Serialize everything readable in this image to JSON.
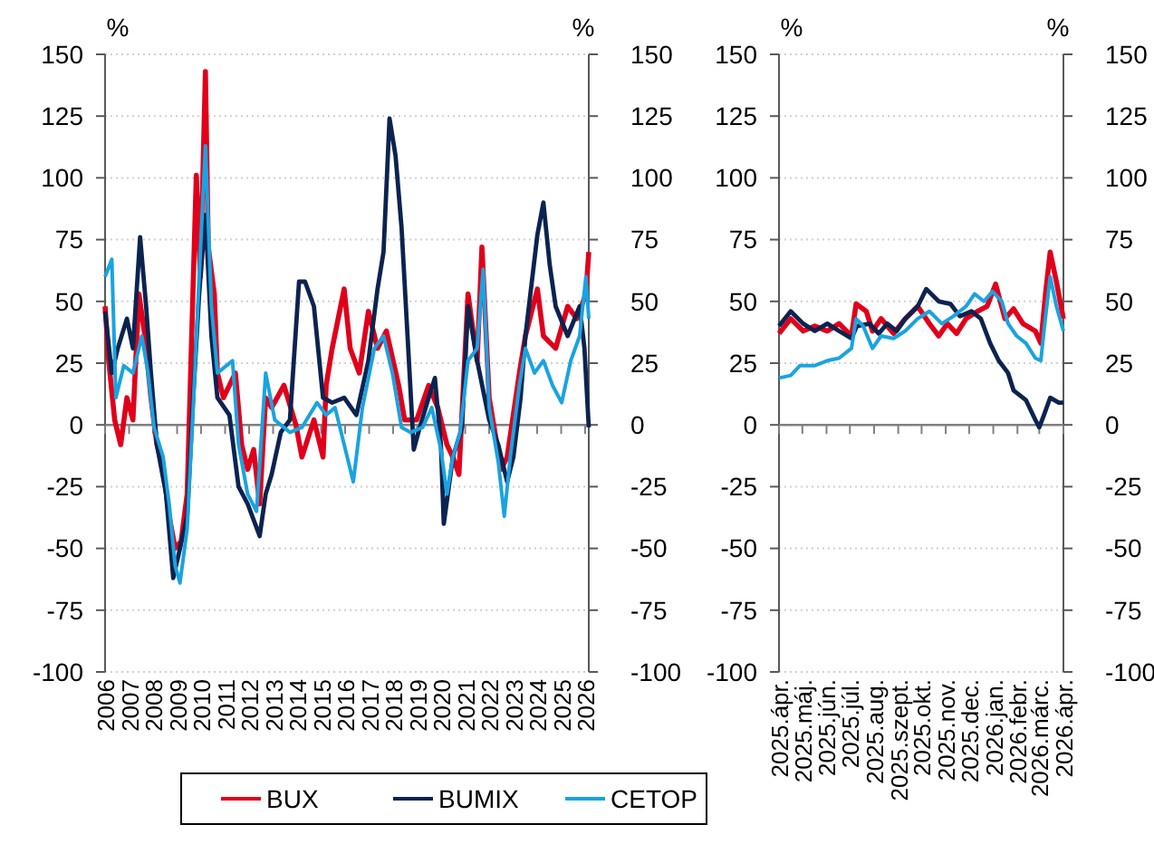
{
  "chart_data": [
    {
      "type": "line",
      "ylabel": "%",
      "y2label": "%",
      "xlim": [
        2006,
        2026.15
      ],
      "xticks": [
        2006,
        2007,
        2008,
        2009,
        2010,
        2011,
        2012,
        2013,
        2014,
        2015,
        2016,
        2017,
        2018,
        2019,
        2020,
        2021,
        2022,
        2023,
        2024,
        2025,
        2026
      ],
      "ylim": [
        -100,
        150
      ],
      "yticks": [
        -100,
        -75,
        -50,
        -25,
        0,
        25,
        50,
        75,
        100,
        125,
        150
      ],
      "y2lim": [
        -100,
        150
      ],
      "y2ticks": [
        -100,
        -75,
        -50,
        -25,
        0,
        25,
        50,
        75,
        100,
        125,
        150
      ],
      "grid": "y",
      "legend": "bottom",
      "series": [
        {
          "name": "BUX",
          "color": "#e0001b",
          "x": [
            2006.0,
            2006.15,
            2006.4,
            2006.65,
            2006.91,
            2007.16,
            2007.41,
            2007.66,
            2007.91,
            2008.16,
            2008.42,
            2008.67,
            2008.92,
            2009.17,
            2009.42,
            2009.55,
            2009.8,
            2009.97,
            2010.18,
            2010.3,
            2010.55,
            2010.68,
            2010.93,
            2011.43,
            2011.69,
            2011.94,
            2012.19,
            2012.44,
            2012.69,
            2012.94,
            2013.45,
            2013.95,
            2014.2,
            2014.7,
            2015.08,
            2015.21,
            2015.46,
            2015.96,
            2016.21,
            2016.59,
            2016.97,
            2017.35,
            2017.72,
            2018.23,
            2018.48,
            2018.98,
            2019.48,
            2019.86,
            2020.24,
            2020.49,
            2020.74,
            2021.12,
            2021.5,
            2021.7,
            2022.0,
            2022.5,
            2022.75,
            2023.26,
            2023.51,
            2024.01,
            2024.26,
            2024.77,
            2025.27,
            2025.65,
            2026.03,
            2026.15
          ],
          "values": [
            48,
            26,
            2,
            -8,
            11,
            2,
            53,
            36,
            11,
            -8,
            -18,
            -37,
            -50,
            -47,
            -28,
            16,
            101,
            60,
            143,
            72,
            53,
            21,
            11,
            21,
            -8,
            -18,
            -10,
            -32,
            11,
            7,
            16,
            0,
            -13,
            2,
            -13,
            16,
            31,
            55,
            31,
            21,
            46,
            31,
            38,
            16,
            2,
            2,
            16,
            7,
            -8,
            -13,
            -20,
            53,
            26,
            72,
            11,
            -18,
            -13,
            21,
            36,
            55,
            36,
            31,
            48,
            43,
            53,
            70
          ]
        },
        {
          "name": "BUMIX",
          "color": "#0c2350",
          "x": [
            2006.0,
            2006.28,
            2006.53,
            2006.91,
            2007.16,
            2007.46,
            2007.71,
            2007.91,
            2008.16,
            2008.54,
            2008.84,
            2009.12,
            2009.42,
            2009.67,
            2009.92,
            2010.18,
            2010.43,
            2010.68,
            2011.18,
            2011.56,
            2011.94,
            2012.44,
            2012.69,
            2012.94,
            2013.32,
            2013.7,
            2014.08,
            2014.33,
            2014.7,
            2015.08,
            2015.46,
            2015.96,
            2016.47,
            2016.97,
            2017.35,
            2017.6,
            2017.85,
            2018.1,
            2018.35,
            2018.6,
            2018.86,
            2019.11,
            2019.48,
            2019.74,
            2019.99,
            2020.11,
            2020.49,
            2020.87,
            2021.12,
            2021.5,
            2022.0,
            2022.38,
            2022.75,
            2023.01,
            2023.31,
            2023.51,
            2024.01,
            2024.26,
            2024.52,
            2024.77,
            2025.27,
            2025.77,
            2025.97,
            2026.15
          ],
          "values": [
            46,
            21,
            31,
            43,
            31,
            76,
            48,
            21,
            -8,
            -28,
            -62,
            -50,
            -37,
            11,
            53,
            85,
            36,
            11,
            4,
            -25,
            -32,
            -45,
            -28,
            -20,
            -3,
            2,
            58,
            58,
            48,
            11,
            9,
            11,
            4,
            26,
            55,
            70,
            124,
            109,
            80,
            36,
            -10,
            -1,
            11,
            19,
            -8,
            -40,
            -13,
            -1,
            48,
            26,
            2,
            -8,
            -23,
            -13,
            11,
            36,
            77,
            90,
            65,
            48,
            36,
            48,
            31,
            -1
          ]
        },
        {
          "name": "CETOP",
          "color": "#1aa3e0",
          "x": [
            2006.0,
            2006.28,
            2006.45,
            2006.78,
            2007.16,
            2007.53,
            2007.79,
            2008.04,
            2008.42,
            2008.67,
            2008.92,
            2009.12,
            2009.42,
            2009.67,
            2009.92,
            2010.18,
            2010.43,
            2010.68,
            2011.31,
            2011.56,
            2011.94,
            2012.31,
            2012.69,
            2013.07,
            2013.7,
            2014.2,
            2014.83,
            2015.21,
            2015.58,
            2015.96,
            2016.34,
            2016.72,
            2017.22,
            2017.6,
            2017.97,
            2018.35,
            2018.73,
            2019.23,
            2019.61,
            2019.99,
            2020.24,
            2020.49,
            2020.79,
            2021.12,
            2021.5,
            2021.75,
            2022.0,
            2022.38,
            2022.63,
            2022.88,
            2023.26,
            2023.51,
            2023.89,
            2024.26,
            2024.64,
            2025.02,
            2025.4,
            2025.77,
            2026.03,
            2026.15
          ],
          "values": [
            60,
            67,
            11,
            24,
            21,
            36,
            21,
            -1,
            -13,
            -32,
            -57,
            -64,
            -42,
            7,
            60,
            113,
            48,
            21,
            26,
            -8,
            -28,
            -35,
            21,
            2,
            -3,
            -1,
            9,
            4,
            7,
            -8,
            -23,
            7,
            31,
            36,
            21,
            -1,
            -3,
            -1,
            7,
            -10,
            -28,
            -13,
            -3,
            26,
            31,
            63,
            7,
            -15,
            -37,
            -13,
            16,
            31,
            21,
            26,
            16,
            9,
            26,
            36,
            60,
            43
          ]
        }
      ]
    },
    {
      "type": "line",
      "ylabel": "%",
      "y2label": "%",
      "xlim": [
        "2025-04-01",
        "2026-04-01"
      ],
      "xticks": [
        {
          "value": "2025-04-01",
          "label": "2025.ápr."
        },
        {
          "value": "2025-05-01",
          "label": "2025.máj."
        },
        {
          "value": "2025-06-01",
          "label": "2025.jún."
        },
        {
          "value": "2025-07-01",
          "label": "2025.júl."
        },
        {
          "value": "2025-08-01",
          "label": "2025.aug."
        },
        {
          "value": "2025-09-01",
          "label": "2025.szept."
        },
        {
          "value": "2025-10-01",
          "label": "2025.okt."
        },
        {
          "value": "2025-11-01",
          "label": "2025.nov."
        },
        {
          "value": "2025-12-01",
          "label": "2025.dec."
        },
        {
          "value": "2026-01-01",
          "label": "2026.jan."
        },
        {
          "value": "2026-02-01",
          "label": "2026.febr."
        },
        {
          "value": "2026-03-01",
          "label": "2026.márc."
        },
        {
          "value": "2026-04-01",
          "label": "2026.ápr."
        }
      ],
      "ylim": [
        -100,
        150
      ],
      "yticks": [
        -100,
        -75,
        -50,
        -25,
        0,
        25,
        50,
        75,
        100,
        125,
        150
      ],
      "y2lim": [
        -100,
        150
      ],
      "y2ticks": [
        -100,
        -75,
        -50,
        -25,
        0,
        25,
        50,
        75,
        100,
        125,
        150
      ],
      "grid": "y",
      "series": [
        {
          "color": "#e0001b",
          "x": [
            "2025-04-01",
            "2025-04-16",
            "2025-05-02",
            "2025-05-17",
            "2025-06-02",
            "2025-06-17",
            "2025-07-03",
            "2025-07-09",
            "2025-07-22",
            "2025-07-30",
            "2025-08-10",
            "2025-08-26",
            "2025-09-10",
            "2025-09-26",
            "2025-10-11",
            "2025-10-23",
            "2025-11-03",
            "2025-11-15",
            "2025-11-27",
            "2025-12-12",
            "2025-12-24",
            "2026-01-04",
            "2026-01-16",
            "2026-01-27",
            "2026-02-08",
            "2026-02-24",
            "2026-03-03",
            "2026-03-09",
            "2026-03-15",
            "2026-03-23",
            "2026-04-01"
          ],
          "values": [
            37,
            43,
            38,
            40,
            38,
            41,
            36,
            49,
            46,
            38,
            43,
            37,
            43,
            48,
            41,
            36,
            41,
            37,
            43,
            46,
            48,
            57,
            43,
            47,
            41,
            38,
            33,
            53,
            70,
            58,
            43
          ]
        },
        {
          "color": "#0c2350",
          "x": [
            "2025-04-01",
            "2025-04-16",
            "2025-05-02",
            "2025-05-17",
            "2025-06-02",
            "2025-06-17",
            "2025-07-03",
            "2025-07-10",
            "2025-07-26",
            "2025-08-07",
            "2025-08-18",
            "2025-08-30",
            "2025-09-10",
            "2025-09-26",
            "2025-10-07",
            "2025-10-23",
            "2025-11-07",
            "2025-11-19",
            "2025-12-04",
            "2025-12-16",
            "2025-12-28",
            "2026-01-08",
            "2026-01-20",
            "2026-01-27",
            "2026-02-12",
            "2026-02-24",
            "2026-03-01",
            "2026-03-07",
            "2026-03-15",
            "2026-03-26",
            "2026-04-01"
          ],
          "values": [
            40,
            46,
            41,
            38,
            41,
            38,
            35,
            40,
            41,
            37,
            41,
            38,
            43,
            48,
            55,
            50,
            49,
            44,
            46,
            43,
            33,
            26,
            21,
            14,
            10,
            2,
            -1,
            4,
            11,
            9,
            9
          ]
        },
        {
          "color": "#1aa3e0",
          "x": [
            "2025-04-01",
            "2025-04-16",
            "2025-04-28",
            "2025-05-17",
            "2025-06-02",
            "2025-06-17",
            "2025-07-03",
            "2025-07-09",
            "2025-07-18",
            "2025-07-30",
            "2025-08-10",
            "2025-08-26",
            "2025-09-10",
            "2025-09-26",
            "2025-10-11",
            "2025-10-27",
            "2025-11-11",
            "2025-11-27",
            "2025-12-08",
            "2025-12-20",
            "2025-12-31",
            "2026-01-12",
            "2026-01-20",
            "2026-01-31",
            "2026-02-12",
            "2026-02-24",
            "2026-03-03",
            "2026-03-07",
            "2026-03-15",
            "2026-03-23",
            "2026-04-01"
          ],
          "values": [
            19,
            20,
            24,
            24,
            26,
            27,
            31,
            43,
            40,
            31,
            36,
            35,
            38,
            43,
            46,
            41,
            44,
            48,
            53,
            50,
            54,
            50,
            41,
            36,
            33,
            27,
            26,
            38,
            60,
            48,
            38
          ]
        }
      ]
    }
  ]
}
